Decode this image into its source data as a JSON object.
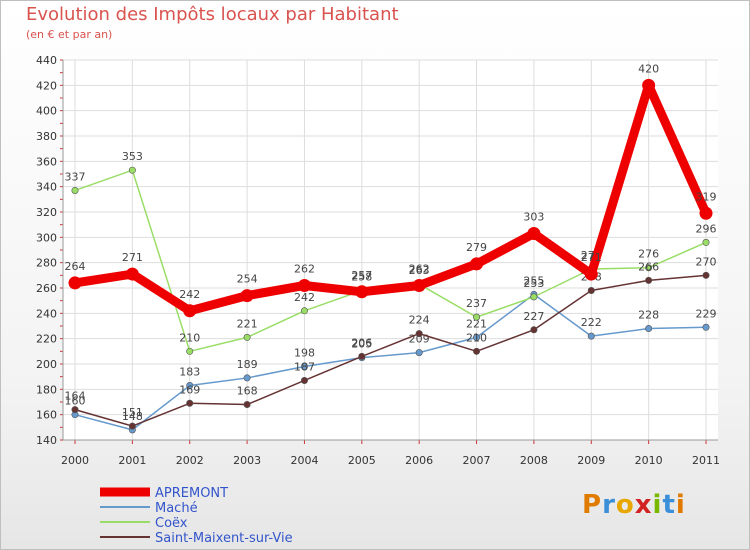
{
  "chart_data": {
    "type": "line",
    "title": "Evolution des Impôts locaux par Habitant",
    "subtitle": "(en € et par an)",
    "xlabel": "",
    "ylabel": "",
    "x": [
      "2000",
      "2001",
      "2002",
      "2003",
      "2004",
      "2005",
      "2006",
      "2007",
      "2008",
      "2009",
      "2010",
      "2011"
    ],
    "ylim": [
      140,
      440
    ],
    "yticks": [
      140,
      160,
      180,
      200,
      220,
      240,
      260,
      280,
      300,
      320,
      340,
      360,
      380,
      400,
      420,
      440
    ],
    "grid": true,
    "legend": "bottom-left",
    "series": [
      {
        "name": "APREMONT",
        "color": "#ee0000",
        "values": [
          264,
          271,
          242,
          254,
          262,
          257,
          262,
          279,
          303,
          271,
          420,
          319
        ]
      },
      {
        "name": "Maché",
        "color": "#6699cc",
        "values": [
          160,
          148,
          183,
          189,
          198,
          205,
          209,
          221,
          255,
          222,
          228,
          229
        ]
      },
      {
        "name": "Coëx",
        "color": "#99dd66",
        "values": [
          337,
          353,
          210,
          221,
          242,
          258,
          263,
          237,
          253,
          275,
          276,
          296
        ]
      },
      {
        "name": "Saint-Maixent-sur-Vie",
        "color": "#663333",
        "values": [
          164,
          151,
          169,
          168,
          187,
          206,
          224,
          210,
          227,
          258,
          266,
          270
        ]
      }
    ]
  },
  "logo": {
    "text": "Proxiti",
    "letters": [
      "P",
      "r",
      "o",
      "x",
      "i",
      "t",
      "i"
    ]
  }
}
